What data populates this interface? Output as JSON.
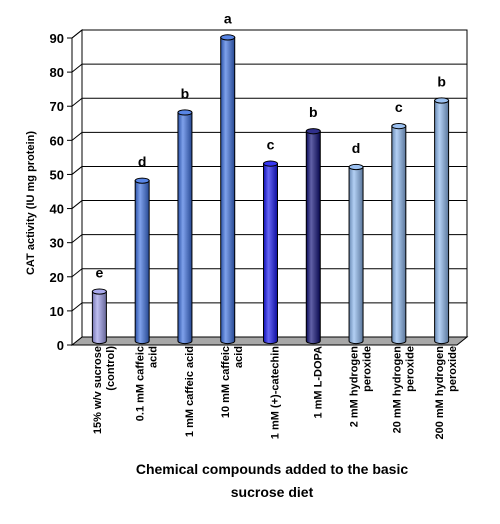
{
  "chart_data": {
    "type": "bar",
    "categories": [
      [
        "15% w/v sucrose",
        "(control)"
      ],
      [
        "0.1 mM caffeic",
        "acid"
      ],
      [
        "1 mM caffeic acid"
      ],
      [
        "10 mM caffeic",
        "acid"
      ],
      [
        "1 mM (+)-catechin"
      ],
      [
        "1 mM L-DOPA"
      ],
      [
        "2 mM hydrogen",
        "peroxide"
      ],
      [
        "20 mM hydrogen",
        "peroxide"
      ],
      [
        "200 mM hydrogen",
        "peroxide"
      ]
    ],
    "values": [
      14.5,
      47,
      67,
      89,
      52,
      61.5,
      51,
      63,
      70.5
    ],
    "significance_letters": [
      "e",
      "d",
      "b",
      "a",
      "c",
      "b",
      "d",
      "c",
      "b"
    ],
    "bar_colors": [
      "#9b9bea",
      "#3a6fe0",
      "#3a6fe0",
      "#3a6fe0",
      "#1414f0",
      "#0c0c78",
      "#8ab6ee",
      "#8ab6ee",
      "#8ab6ee"
    ],
    "ylabel": "CAT activity (IU mg protein)",
    "xlabel_lines": [
      "Chemical compounds added to the basic",
      "sucrose diet"
    ],
    "ylim": [
      0,
      90
    ],
    "yticks": [
      0,
      10,
      20,
      30,
      40,
      50,
      60,
      70,
      80,
      90
    ],
    "grid": true,
    "style": "3d-cylinder"
  }
}
